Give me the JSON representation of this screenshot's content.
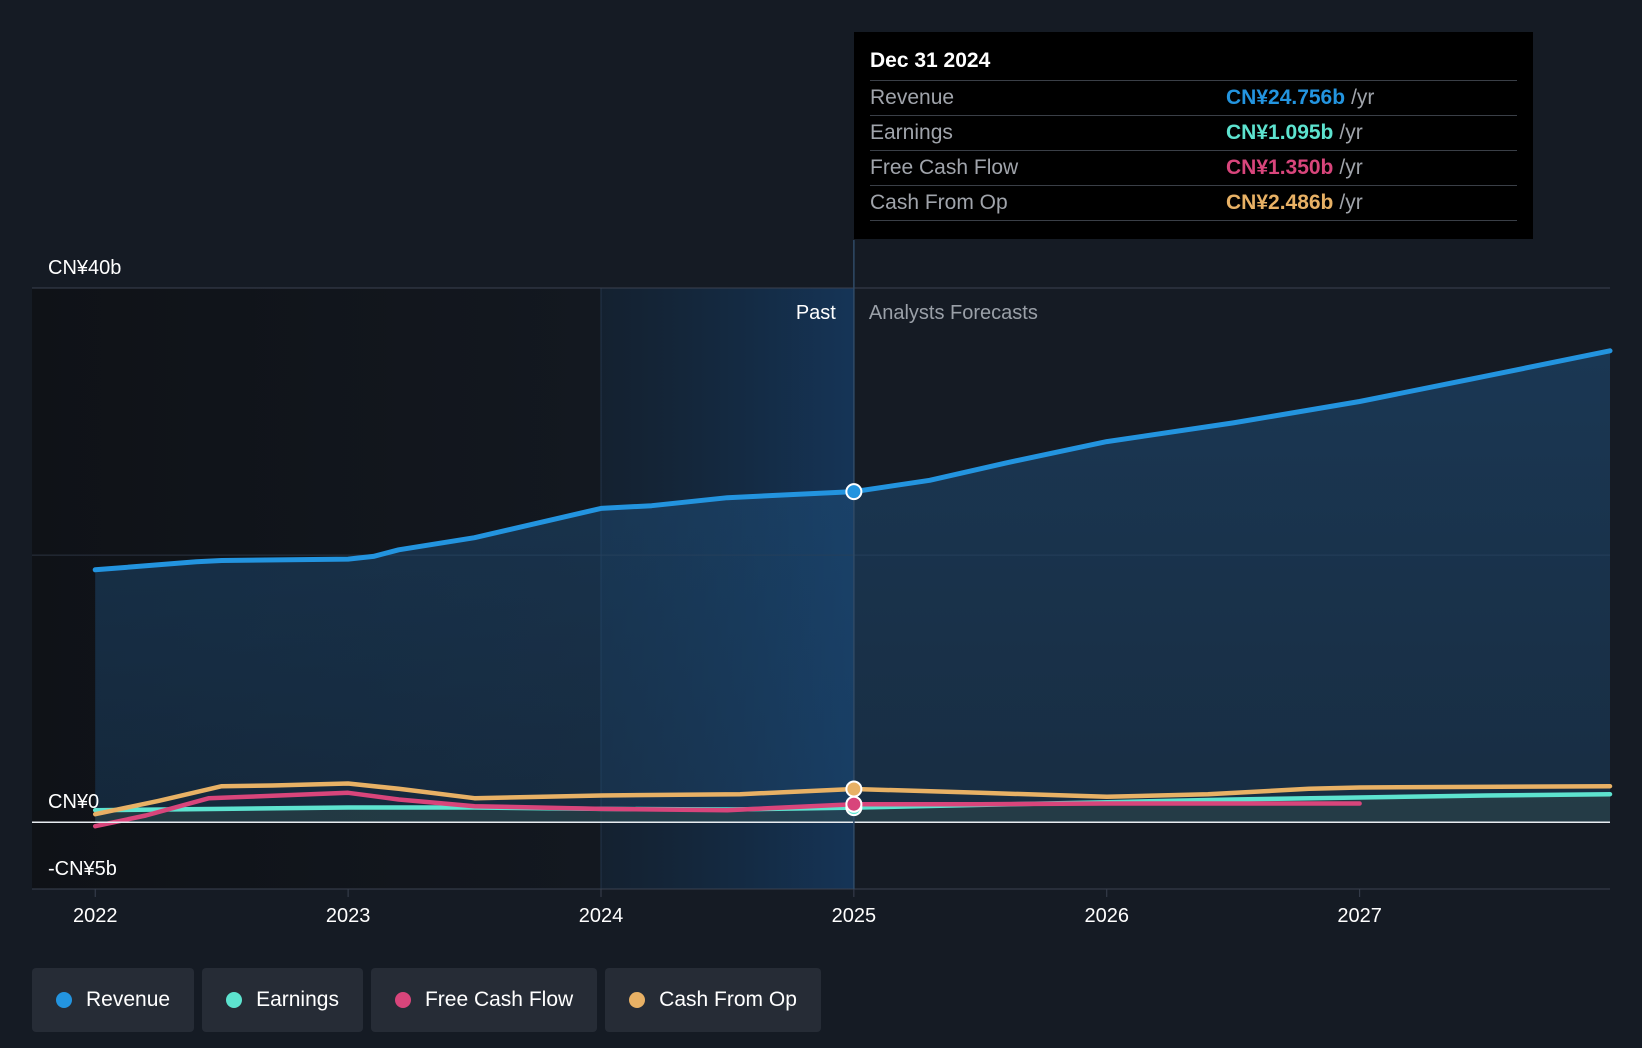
{
  "chart_data": {
    "type": "area",
    "x_ticks": [
      "2022",
      "2023",
      "2024",
      "2025",
      "2026",
      "2027"
    ],
    "y_ticks": [
      {
        "value": 40,
        "label": "CN¥40b"
      },
      {
        "value": 0,
        "label": "CN¥0"
      },
      {
        "value": -5,
        "label": "-CN¥5b"
      }
    ],
    "ylim": [
      -5,
      40
    ],
    "xlim": [
      2021.75,
      2027.99
    ],
    "unit": "CN¥b",
    "past_label": "Past",
    "forecast_label": "Analysts Forecasts",
    "divider_x": 2025.0,
    "highlight_start_x": 2024.0,
    "series": [
      {
        "name": "Revenue",
        "color": "#2394df",
        "filled": true,
        "points": [
          [
            2022.0,
            18.9
          ],
          [
            2022.4,
            19.5
          ],
          [
            2022.5,
            19.6
          ],
          [
            2023.0,
            19.7
          ],
          [
            2023.1,
            19.9
          ],
          [
            2023.2,
            20.4
          ],
          [
            2023.5,
            21.3
          ],
          [
            2024.0,
            23.5
          ],
          [
            2024.2,
            23.7
          ],
          [
            2024.5,
            24.3
          ],
          [
            2025.0,
            24.756
          ],
          [
            2025.3,
            25.6
          ],
          [
            2025.6,
            26.9
          ],
          [
            2026.0,
            28.5
          ],
          [
            2026.5,
            29.9
          ],
          [
            2027.0,
            31.5
          ],
          [
            2027.5,
            33.4
          ],
          [
            2027.99,
            35.3
          ]
        ]
      },
      {
        "name": "Earnings",
        "color": "#5de3cf",
        "filled": false,
        "points": [
          [
            2022.0,
            0.9
          ],
          [
            2022.5,
            1.0
          ],
          [
            2023.0,
            1.1
          ],
          [
            2023.5,
            1.1
          ],
          [
            2024.0,
            1.0
          ],
          [
            2024.5,
            0.95
          ],
          [
            2025.0,
            1.095
          ],
          [
            2025.5,
            1.3
          ],
          [
            2026.0,
            1.5
          ],
          [
            2026.5,
            1.7
          ],
          [
            2027.0,
            1.85
          ],
          [
            2027.5,
            2.0
          ],
          [
            2027.99,
            2.1
          ]
        ]
      },
      {
        "name": "Free Cash Flow",
        "color": "#d8457b",
        "filled": false,
        "points": [
          [
            2022.0,
            -0.3
          ],
          [
            2022.2,
            0.5
          ],
          [
            2022.45,
            1.8
          ],
          [
            2022.6,
            1.9
          ],
          [
            2023.0,
            2.2
          ],
          [
            2023.2,
            1.7
          ],
          [
            2023.5,
            1.2
          ],
          [
            2024.0,
            1.0
          ],
          [
            2024.5,
            0.9
          ],
          [
            2025.0,
            1.35
          ],
          [
            2025.5,
            1.35
          ],
          [
            2026.0,
            1.4
          ],
          [
            2026.5,
            1.4
          ],
          [
            2027.0,
            1.4
          ]
        ]
      },
      {
        "name": "Cash From Op",
        "color": "#e8b165",
        "filled": false,
        "points": [
          [
            2022.0,
            0.6
          ],
          [
            2022.25,
            1.6
          ],
          [
            2022.5,
            2.7
          ],
          [
            2022.7,
            2.75
          ],
          [
            2023.0,
            2.9
          ],
          [
            2023.2,
            2.5
          ],
          [
            2023.5,
            1.8
          ],
          [
            2024.0,
            2.0
          ],
          [
            2024.55,
            2.1
          ],
          [
            2025.0,
            2.486
          ],
          [
            2025.5,
            2.2
          ],
          [
            2026.0,
            1.9
          ],
          [
            2026.4,
            2.1
          ],
          [
            2026.8,
            2.5
          ],
          [
            2027.0,
            2.6
          ],
          [
            2027.99,
            2.7
          ]
        ]
      }
    ]
  },
  "tooltip": {
    "date": "Dec 31 2024",
    "unit": "/yr",
    "rows": [
      {
        "name": "Revenue",
        "value": "CN¥24.756b",
        "color": "#2394df"
      },
      {
        "name": "Earnings",
        "value": "CN¥1.095b",
        "color": "#5de3cf"
      },
      {
        "name": "Free Cash Flow",
        "value": "CN¥1.350b",
        "color": "#d8457b"
      },
      {
        "name": "Cash From Op",
        "value": "CN¥2.486b",
        "color": "#e8b165"
      }
    ]
  },
  "legend": [
    {
      "label": "Revenue",
      "color": "#2394df"
    },
    {
      "label": "Earnings",
      "color": "#5de3cf"
    },
    {
      "label": "Free Cash Flow",
      "color": "#d8457b"
    },
    {
      "label": "Cash From Op",
      "color": "#e8b165"
    }
  ]
}
